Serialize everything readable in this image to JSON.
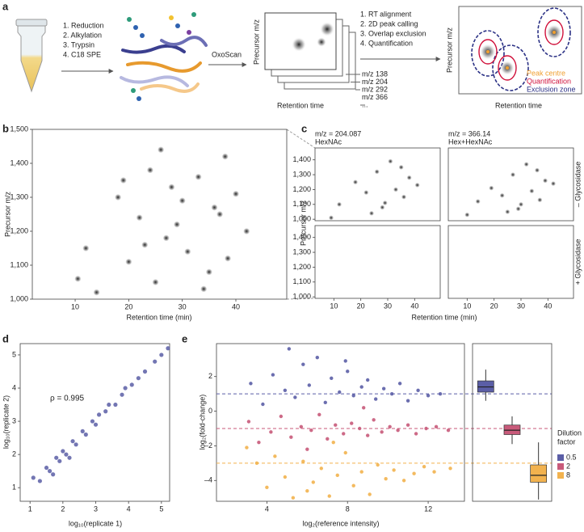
{
  "diagram": {
    "panel": "a",
    "steps_left": [
      "1. Reduction",
      "2. Alkylation",
      "3. Trypsin",
      "4. C18 SPE"
    ],
    "method": "OxoScan",
    "image_axis_y": "Precursor m/z",
    "image_axis_x": "Retention time",
    "channels": [
      "m/z 138",
      "m/z 204",
      "m/z 292",
      "m/z 366",
      "..."
    ],
    "steps_right": [
      "1. RT alignment",
      "2. 2D peak calling",
      "3. Overlap exclusion",
      "4. Quantification"
    ],
    "result_axis_y": "Precursor m/z",
    "result_axis_x": "Retention time",
    "legend": [
      "Peak centre",
      "Quantification",
      "Exclusion zone"
    ]
  },
  "chart_data": [
    {
      "type": "scatter",
      "panel": "b",
      "xlabel": "Retention time (min)",
      "ylabel": "Precursor m/z",
      "x": [
        10.5,
        12,
        14,
        18,
        20,
        22,
        24,
        25,
        27,
        28,
        29,
        30,
        31,
        33,
        35,
        37,
        38,
        38.5,
        40,
        42,
        26,
        23,
        19,
        34,
        36
      ],
      "values": [
        1060,
        1150,
        1020,
        1300,
        1110,
        1240,
        1380,
        1050,
        1180,
        1330,
        1220,
        1290,
        1140,
        1360,
        1080,
        1250,
        1420,
        1120,
        1310,
        1200,
        1440,
        1160,
        1350,
        1030,
        1270
      ],
      "color": "#111111",
      "xlim": [
        2,
        49.5
      ],
      "ylim": [
        1000,
        1500
      ],
      "xticks": [
        10,
        20,
        30,
        40
      ],
      "yticks": [
        {
          "value": 1000,
          "label": "1,000"
        },
        {
          "value": 1100,
          "label": "1,100"
        },
        {
          "value": 1200,
          "label": "1,200"
        },
        {
          "value": 1300,
          "label": "1,300"
        },
        {
          "value": 1400,
          "label": "1,400"
        },
        {
          "value": 1500,
          "label": "1,500"
        }
      ]
    },
    {
      "type": "scatter",
      "panel": "c",
      "title": "m/z = 204.087",
      "subtitle": "HexNAc",
      "x": [
        9,
        12,
        18,
        22,
        26,
        28,
        31,
        33,
        36,
        38,
        41,
        24,
        29,
        35
      ],
      "values": [
        1010,
        1100,
        1250,
        1180,
        1320,
        1080,
        1390,
        1200,
        1150,
        1280,
        1230,
        1040,
        1110,
        1350
      ],
      "color": "#111111",
      "xlim": [
        3,
        49.5
      ],
      "ylim": [
        990,
        1480
      ],
      "yticks": [
        {
          "value": 1000,
          "label": "1,000"
        },
        {
          "value": 1100,
          "label": "1,100"
        },
        {
          "value": 1200,
          "label": "1,200"
        },
        {
          "value": 1300,
          "label": "1,300"
        },
        {
          "value": 1400,
          "label": "1,400"
        }
      ]
    },
    {
      "type": "scatter",
      "panel": "c",
      "title": "m/z = 366.14",
      "subtitle": "Hex+HexNAc",
      "row_label": "– Glycosidase",
      "x": [
        10,
        14,
        19,
        23,
        27,
        29,
        32,
        34,
        37,
        39,
        42,
        25,
        30,
        36
      ],
      "values": [
        1030,
        1120,
        1210,
        1160,
        1300,
        1070,
        1370,
        1190,
        1130,
        1260,
        1240,
        1050,
        1100,
        1330
      ],
      "color": "#111111",
      "xlim": [
        3,
        49.5
      ],
      "ylim": [
        990,
        1480
      ]
    },
    {
      "type": "scatter",
      "panel": "c",
      "xlabel": "Retention time (min)",
      "ylabel": "Precursor m/z",
      "x": [],
      "values": [],
      "color": "#111111",
      "xlim": [
        3,
        49.5
      ],
      "ylim": [
        990,
        1480
      ],
      "xticks": [
        10,
        20,
        30,
        40
      ],
      "yticks": [
        {
          "value": 1000,
          "label": "1,000"
        },
        {
          "value": 1100,
          "label": "1,100"
        },
        {
          "value": 1200,
          "label": "1,200"
        },
        {
          "value": 1300,
          "label": "1,300"
        },
        {
          "value": 1400,
          "label": "1,400"
        }
      ]
    },
    {
      "type": "scatter",
      "panel": "c",
      "row_label": "+ Glycosidase",
      "x": [],
      "values": [],
      "color": "#111111",
      "xlim": [
        3,
        49.5
      ],
      "ylim": [
        990,
        1480
      ],
      "xticks": [
        10,
        20,
        30,
        40
      ]
    },
    {
      "type": "scatter",
      "panel": "d",
      "xlabel": "log₁₀(replicate 1)",
      "ylabel": "log₁₀(replicate 2)",
      "annotation": "ρ = 0.995",
      "x": [
        1.1,
        1.3,
        1.5,
        1.6,
        1.8,
        1.9,
        2.0,
        2.1,
        2.3,
        2.4,
        2.6,
        2.7,
        2.9,
        3.0,
        3.1,
        3.3,
        3.4,
        3.6,
        3.8,
        3.9,
        4.1,
        4.3,
        4.5,
        4.8,
        5.0,
        5.2,
        2.2,
        1.7
      ],
      "values": [
        1.3,
        1.2,
        1.6,
        1.5,
        1.9,
        1.8,
        2.1,
        2.0,
        2.4,
        2.3,
        2.7,
        2.6,
        3.0,
        2.9,
        3.2,
        3.3,
        3.5,
        3.5,
        3.8,
        4.0,
        4.1,
        4.3,
        4.5,
        4.8,
        5.0,
        5.2,
        1.9,
        1.4
      ],
      "color": "#5b5ea6",
      "xlim": [
        0.7,
        5.25
      ],
      "ylim": [
        0.59,
        5.34
      ],
      "xticks": [
        1,
        2,
        3,
        4,
        5
      ],
      "yticks": [
        1,
        2,
        3,
        4,
        5
      ]
    },
    {
      "type": "scatter",
      "panel": "e",
      "xlabel": "log₂(reference intensity)",
      "ylabel": "log₂(fold-change)",
      "xlim": [
        1.5,
        13.8
      ],
      "ylim": [
        -5.2,
        3.9
      ],
      "xticks": [
        4,
        8,
        12
      ],
      "yticks": [
        2,
        0,
        {
          "value": -2,
          "label": "–2"
        },
        {
          "value": -4,
          "label": "–4"
        }
      ],
      "series": [
        {
          "color": "#5b5ea6",
          "expected": 1,
          "x": [
            3.2,
            3.8,
            4.3,
            4.9,
            5.4,
            5.8,
            6.1,
            6.5,
            6.9,
            7.2,
            7.6,
            8.0,
            8.3,
            8.7,
            9.0,
            9.4,
            9.8,
            10.2,
            10.6,
            11.0,
            11.5,
            12.0,
            12.6,
            5.1,
            7.9
          ],
          "values": [
            1.6,
            0.4,
            2.1,
            1.2,
            0.8,
            2.7,
            1.5,
            3.1,
            0.5,
            1.9,
            1.1,
            2.3,
            0.9,
            1.4,
            1.8,
            0.7,
            1.3,
            1.0,
            1.6,
            0.6,
            1.2,
            0.9,
            1.0,
            3.6,
            2.9
          ]
        },
        {
          "color": "#c85a7a",
          "expected": -1,
          "x": [
            3.1,
            3.6,
            4.2,
            4.7,
            5.2,
            5.7,
            6.2,
            6.6,
            7.0,
            7.4,
            7.8,
            8.2,
            8.6,
            9.0,
            9.3,
            9.7,
            10.1,
            10.5,
            11.0,
            11.4,
            11.9,
            12.4,
            13.0,
            6.0,
            8.8
          ],
          "values": [
            -0.6,
            -1.8,
            -1.2,
            -0.3,
            -1.5,
            -0.9,
            -1.1,
            -0.2,
            -1.6,
            -0.8,
            -1.3,
            -0.7,
            -1.0,
            -1.4,
            -0.5,
            -1.2,
            -0.9,
            -1.1,
            -0.8,
            -1.3,
            -1.0,
            -0.9,
            -1.1,
            -2.2,
            0.2
          ]
        },
        {
          "color": "#f2b24e",
          "expected": -3,
          "x": [
            3.0,
            3.5,
            4.0,
            4.4,
            4.9,
            5.3,
            5.8,
            6.3,
            6.7,
            7.1,
            7.5,
            7.9,
            8.3,
            8.7,
            9.1,
            9.5,
            9.9,
            10.3,
            10.8,
            11.3,
            11.8,
            12.3,
            13.1,
            6.0,
            7.3
          ],
          "values": [
            -2.1,
            -3.0,
            -4.4,
            -2.6,
            -3.8,
            -5.0,
            -2.9,
            -4.1,
            -3.3,
            -4.9,
            -3.7,
            -2.4,
            -4.3,
            -3.5,
            -4.8,
            -3.1,
            -3.9,
            -3.4,
            -4.0,
            -3.6,
            -3.2,
            -3.5,
            -3.3,
            -4.6,
            -1.8
          ]
        }
      ]
    },
    {
      "type": "box",
      "panel": "e",
      "ylim": [
        -5.2,
        3.9
      ],
      "legend_title": [
        "Dilution",
        "factor"
      ],
      "series": [
        {
          "name": "0.5",
          "color": "#5b5ea6",
          "whislo": 0.6,
          "q1": 1.1,
          "med": 1.4,
          "q3": 1.75,
          "whishi": 2.4
        },
        {
          "name": "2",
          "color": "#c85a7a",
          "whislo": -1.9,
          "q1": -1.35,
          "med": -1.1,
          "q3": -0.8,
          "whishi": -0.3
        },
        {
          "name": "8",
          "color": "#f2b24e",
          "whislo": -5.1,
          "q1": -4.1,
          "med": -3.7,
          "q3": -3.1,
          "whishi": -1.8
        }
      ]
    }
  ]
}
